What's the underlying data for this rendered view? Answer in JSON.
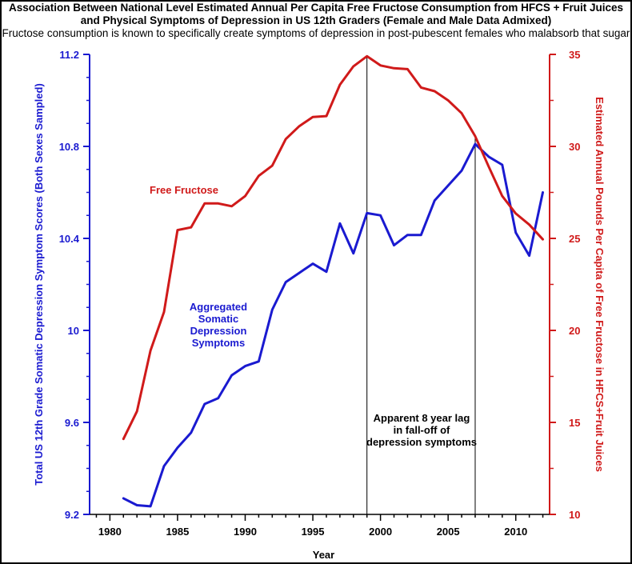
{
  "chart_data": {
    "type": "line",
    "title_lines": [
      "Association Between National Level Estimated Annual Per Capita Free Fructose Consumption from HFCS + Fruit Juices",
      "and Physical Symptoms of Depression in US 12th Graders (Female and Male Data Admixed)"
    ],
    "subtitle": "Fructose consumption is known to specifically create symptoms of depression in post-pubescent females who malabsorb that sugar",
    "xlabel": "Year",
    "xlim": [
      1978.5,
      2012.5
    ],
    "x_ticks": [
      "1980",
      "1985",
      "1990",
      "1995",
      "2000",
      "2005",
      "2010"
    ],
    "y_left": {
      "label": "Total US 12th Grade Somatic Depression Symptom Scores (Both Sexes Sampled)",
      "lim": [
        9.2,
        11.2
      ],
      "ticks": [
        "9.2",
        "9.6",
        "10",
        "10.4",
        "10.8",
        "11.2"
      ],
      "color": "#1a1ad0"
    },
    "y_right": {
      "label": "Estimated Annual Pounds Per Capita of Free Fructose in HFCS+Fruit Juices",
      "lim": [
        10,
        35
      ],
      "ticks": [
        "10",
        "15",
        "20",
        "25",
        "30",
        "35"
      ],
      "color": "#d01a1a"
    },
    "series": [
      {
        "name": "Aggregated Somatic Depression Symptoms",
        "label_lines": [
          "Aggregated",
          "Somatic",
          "Depression",
          "Symptoms"
        ],
        "axis": "left",
        "color": "#1a1ad0",
        "x": [
          1981,
          1982,
          1983,
          1984,
          1985,
          1986,
          1987,
          1988,
          1989,
          1990,
          1991,
          1992,
          1993,
          1994,
          1995,
          1996,
          1997,
          1998,
          1999,
          2000,
          2001,
          2002,
          2003,
          2004,
          2005,
          2006,
          2007,
          2008,
          2009,
          2010,
          2011,
          2012
        ],
        "values": [
          9.27,
          9.24,
          9.235,
          9.41,
          9.49,
          9.555,
          9.68,
          9.705,
          9.805,
          9.845,
          9.865,
          10.09,
          10.21,
          10.25,
          10.29,
          10.255,
          10.465,
          10.335,
          10.51,
          10.5,
          10.37,
          10.415,
          10.415,
          10.565,
          10.63,
          10.695,
          10.81,
          10.755,
          10.72,
          10.425,
          10.325,
          10.6
        ]
      },
      {
        "name": "Free Fructose",
        "label_lines": [
          "Free Fructose"
        ],
        "axis": "right",
        "color": "#d01a1a",
        "x": [
          1981,
          1982,
          1983,
          1984,
          1985,
          1986,
          1987,
          1988,
          1989,
          1990,
          1991,
          1992,
          1993,
          1994,
          1995,
          1996,
          1997,
          1998,
          1999,
          2000,
          2001,
          2002,
          2003,
          2004,
          2005,
          2006,
          2007,
          2008,
          2009,
          2010,
          2011,
          2012
        ],
        "values": [
          14.1,
          15.6,
          18.9,
          21.0,
          25.45,
          25.6,
          26.9,
          26.9,
          26.75,
          27.3,
          28.4,
          28.95,
          30.4,
          31.1,
          31.6,
          31.65,
          33.35,
          34.35,
          34.9,
          34.4,
          34.25,
          34.2,
          33.2,
          33.0,
          32.5,
          31.8,
          30.55,
          28.9,
          27.3,
          26.35,
          25.75,
          24.95
        ]
      }
    ],
    "annotations": [
      {
        "text_lines": [
          "Apparent 8 year lag",
          "in fall-off of",
          "depression symptoms"
        ],
        "marker_years": [
          1999,
          2007
        ]
      }
    ],
    "grid": false
  }
}
